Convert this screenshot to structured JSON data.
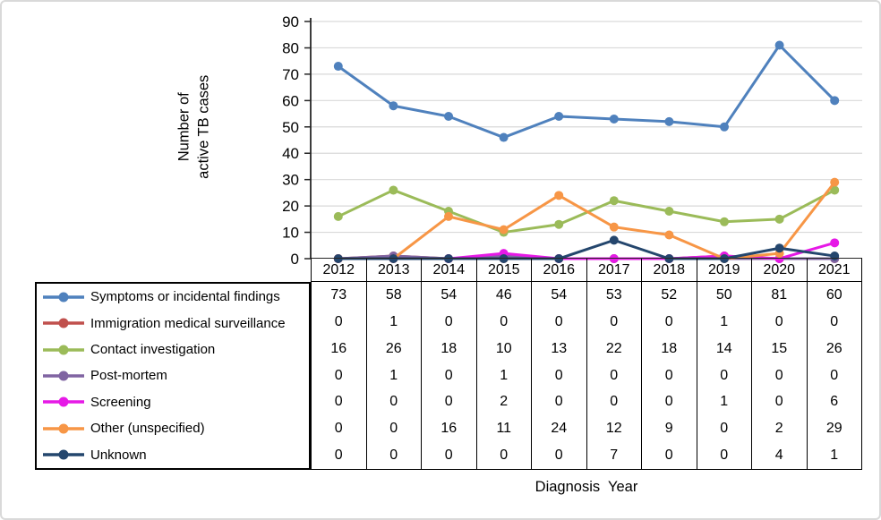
{
  "frame": {
    "background": "#ffffff",
    "border_color": "#d9d9d9"
  },
  "chart_data": {
    "type": "line",
    "title": "",
    "xlabel": "Diagnosis  Year",
    "ylabel_lines": [
      "Number of",
      "active TB cases"
    ],
    "categories": [
      "2012",
      "2013",
      "2014",
      "2015",
      "2016",
      "2017",
      "2018",
      "2019",
      "2020",
      "2021"
    ],
    "yticks": [
      0,
      10,
      20,
      30,
      40,
      50,
      60,
      70,
      80,
      90
    ],
    "ylim": [
      0,
      90
    ],
    "grid": true,
    "legend_position": "table-left-column",
    "colors": {
      "axis": "#262626",
      "grid": "#d9d9d9",
      "table_border": "#000000"
    },
    "series": [
      {
        "name": "Symptoms or incidental findings",
        "color": "#4F81BD",
        "values": [
          73,
          58,
          54,
          46,
          54,
          53,
          52,
          50,
          81,
          60
        ]
      },
      {
        "name": "Immigration medical surveillance",
        "color": "#C0504D",
        "values": [
          0,
          1,
          0,
          0,
          0,
          0,
          0,
          1,
          0,
          0
        ]
      },
      {
        "name": "Contact investigation",
        "color": "#9BBB59",
        "values": [
          16,
          26,
          18,
          10,
          13,
          22,
          18,
          14,
          15,
          26
        ]
      },
      {
        "name": "Post-mortem",
        "color": "#8064A2",
        "values": [
          0,
          1,
          0,
          1,
          0,
          0,
          0,
          0,
          0,
          0
        ]
      },
      {
        "name": "Screening",
        "color": "#E619E6",
        "values": [
          0,
          0,
          0,
          2,
          0,
          0,
          0,
          1,
          0,
          6
        ]
      },
      {
        "name": "Other (unspecified)",
        "color": "#F79646",
        "values": [
          0,
          0,
          16,
          11,
          24,
          12,
          9,
          0,
          2,
          29
        ]
      },
      {
        "name": "Unknown",
        "color": "#24466D",
        "values": [
          0,
          0,
          0,
          0,
          0,
          7,
          0,
          0,
          4,
          1
        ]
      }
    ]
  }
}
